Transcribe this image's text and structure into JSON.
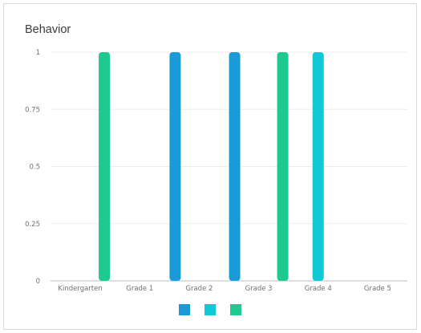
{
  "chart_data": {
    "type": "bar",
    "title": "Behavior",
    "categories": [
      "Kindergarten",
      "Grade 1",
      "Grade 2",
      "Grade 3",
      "Grade 4",
      "Grade 5"
    ],
    "series": [
      {
        "color": "#1a9ad6",
        "values": [
          0,
          0,
          1,
          1,
          0,
          0
        ]
      },
      {
        "color": "#12c7d6",
        "values": [
          0,
          0,
          0,
          0,
          1,
          0
        ]
      },
      {
        "color": "#1cc98f",
        "values": [
          1,
          0,
          0,
          1,
          0,
          0
        ]
      }
    ],
    "ylim": [
      0,
      1
    ],
    "yticks": [
      "0",
      "0.25",
      "0.5",
      "0.75",
      "1"
    ],
    "grid": true,
    "legend_position": "bottom"
  }
}
